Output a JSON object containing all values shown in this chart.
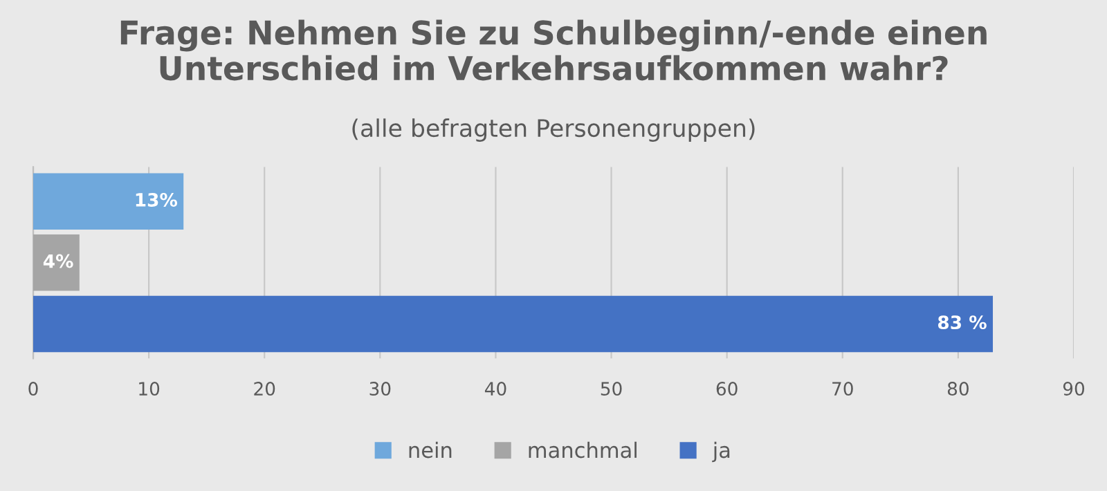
{
  "chart_data": {
    "type": "bar",
    "orientation": "horizontal",
    "title": "Frage: Nehmen Sie zu Schulbeginn/-ende einen\nUnterschied im Verkehrsaufkommen wahr?",
    "subtitle": "(alle befragten Personengruppen)",
    "categories": [
      null
    ],
    "series": [
      {
        "name": "nein",
        "color": "#6fa8dc",
        "values": [
          13
        ],
        "value_labels": [
          "13%"
        ]
      },
      {
        "name": "manchmal",
        "color": "#a5a5a5",
        "values": [
          4
        ],
        "value_labels": [
          "4%"
        ]
      },
      {
        "name": "ja",
        "color": "#4472c4",
        "values": [
          83
        ],
        "value_labels": [
          "83 %"
        ]
      }
    ],
    "xlim": [
      0,
      90
    ],
    "xticks": [
      0,
      10,
      20,
      30,
      40,
      50,
      60,
      70,
      80,
      90
    ],
    "grid": "x",
    "legend": "bottom"
  }
}
